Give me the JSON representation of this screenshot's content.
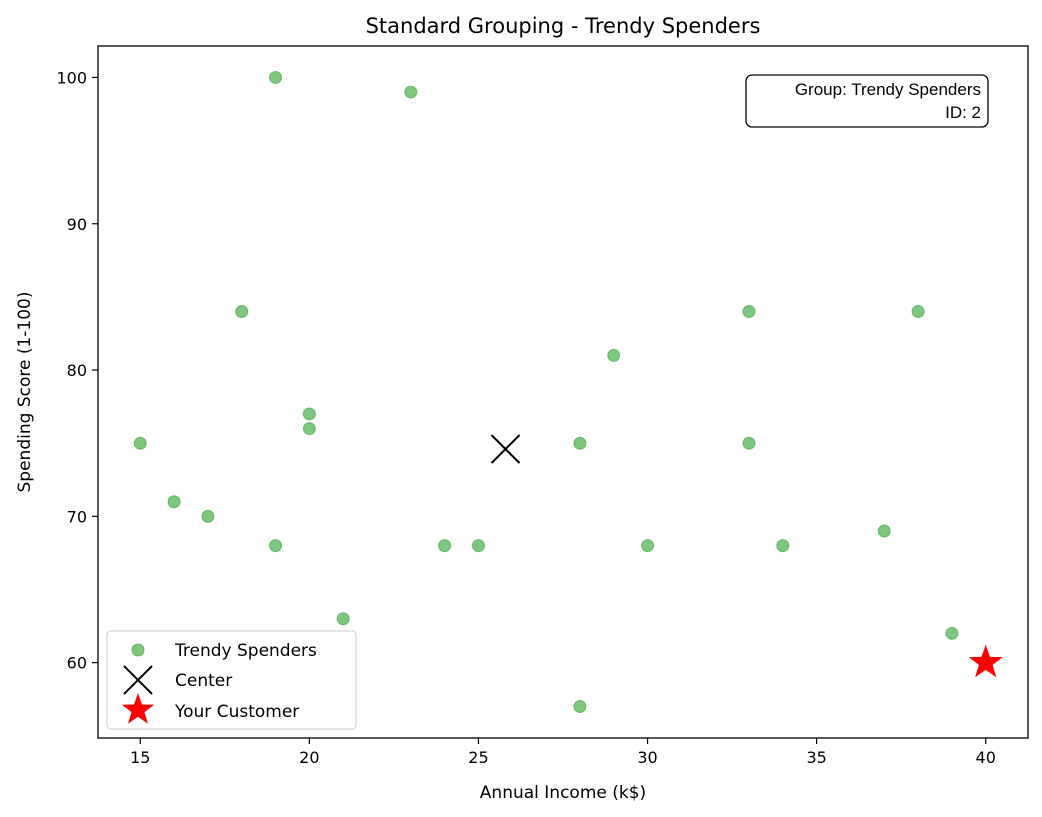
{
  "chart_data": {
    "type": "scatter",
    "title": "Standard Grouping - Trendy Spenders",
    "xlabel": "Annual Income (k$)",
    "ylabel": "Spending Score (1-100)",
    "xlim": [
      13.75,
      41.25
    ],
    "ylim": [
      54.85,
      102.15
    ],
    "x_ticks": [
      15,
      20,
      25,
      30,
      35,
      40
    ],
    "y_ticks": [
      60,
      70,
      80,
      90,
      100
    ],
    "grid": false,
    "legend_position": "lower-left",
    "series": [
      {
        "name": "Trendy Spenders",
        "marker": "circle",
        "color": "#2ca02c",
        "points": [
          {
            "x": 15,
            "y": 75
          },
          {
            "x": 16,
            "y": 71
          },
          {
            "x": 17,
            "y": 70
          },
          {
            "x": 18,
            "y": 84
          },
          {
            "x": 19,
            "y": 100
          },
          {
            "x": 19,
            "y": 68
          },
          {
            "x": 20,
            "y": 77
          },
          {
            "x": 20,
            "y": 76
          },
          {
            "x": 21,
            "y": 63
          },
          {
            "x": 23,
            "y": 99
          },
          {
            "x": 24,
            "y": 68
          },
          {
            "x": 25,
            "y": 68
          },
          {
            "x": 28,
            "y": 75
          },
          {
            "x": 28,
            "y": 57
          },
          {
            "x": 29,
            "y": 81
          },
          {
            "x": 30,
            "y": 68
          },
          {
            "x": 33,
            "y": 84
          },
          {
            "x": 33,
            "y": 75
          },
          {
            "x": 34,
            "y": 68
          },
          {
            "x": 37,
            "y": 69
          },
          {
            "x": 38,
            "y": 84
          },
          {
            "x": 39,
            "y": 62
          }
        ]
      },
      {
        "name": "Center",
        "marker": "x",
        "color": "#000000",
        "points": [
          {
            "x": 25.8,
            "y": 74.6
          }
        ]
      },
      {
        "name": "Your Customer",
        "marker": "star",
        "color": "#ff0000",
        "points": [
          {
            "x": 40,
            "y": 60
          }
        ]
      }
    ],
    "annotation": {
      "line1": "Group: Trendy Spenders",
      "line2": "ID: 2",
      "position": "top-right"
    }
  }
}
